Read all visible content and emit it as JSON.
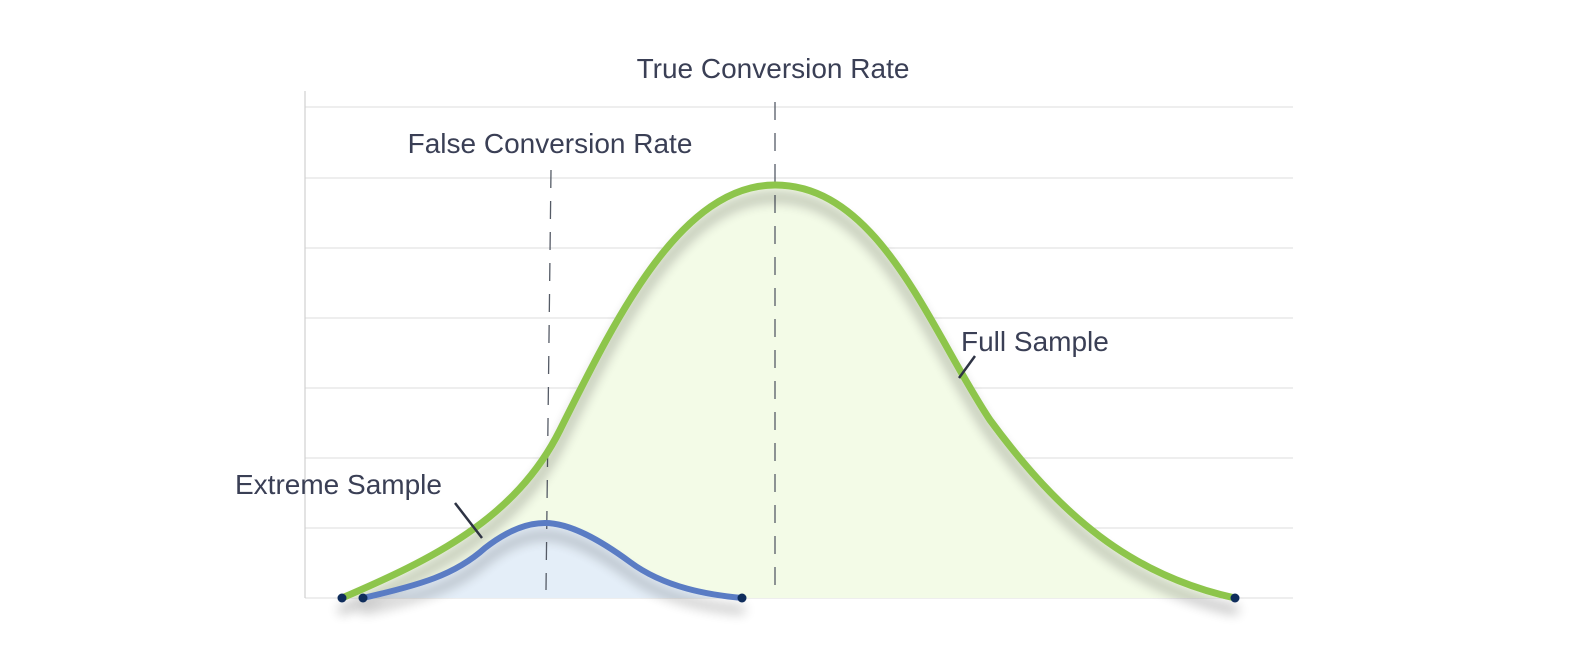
{
  "labels": {
    "true_rate": "True Conversion Rate",
    "false_rate": "False Conversion Rate",
    "full_sample": "Full Sample",
    "extreme_sample": "Extreme Sample"
  },
  "colors": {
    "full_stroke": "#8dc54b",
    "full_fill": "#f3fbe7",
    "extreme_stroke": "#5a7bc4",
    "extreme_fill": "#e4eef8",
    "endpoint": "#0f2d5c",
    "text": "#3a3f55",
    "grid": "#dcdcdc"
  },
  "diagram": {
    "grid_lines": 8,
    "full_sample": {
      "shape": "bell-curve",
      "peak_at": "True Conversion Rate",
      "endpoints": 2
    },
    "extreme_sample": {
      "shape": "small-bell-curve",
      "peak_at": "False Conversion Rate",
      "endpoints": 2
    }
  }
}
